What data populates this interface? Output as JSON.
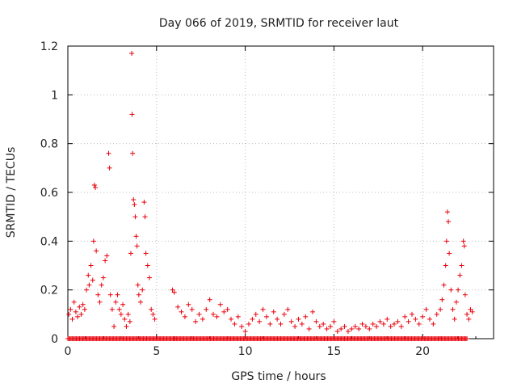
{
  "chart_data": {
    "type": "scatter",
    "title": "Day 066 of 2019, SRMTID for receiver laut",
    "xlabel": "GPS time / hours",
    "ylabel": "SRMTID / TECUs",
    "xlim": [
      0,
      24
    ],
    "ylim": [
      0,
      1.2
    ],
    "x_ticks": [
      0,
      5,
      10,
      15,
      20
    ],
    "x_tick_labels": [
      "0",
      "5",
      "10",
      "15",
      "20"
    ],
    "y_ticks": [
      0,
      0.2,
      0.4,
      0.6,
      0.8,
      1.0,
      1.2
    ],
    "y_tick_labels": [
      "0",
      "0.2",
      "0.4",
      "0.6",
      "0.8",
      "1",
      "1.2"
    ],
    "grid": true,
    "marker": "+",
    "color": "#e8000b",
    "series": [
      {
        "name": "SRMTID",
        "points": [
          [
            0.05,
            0.1
          ],
          [
            0.15,
            0.12
          ],
          [
            0.25,
            0.08
          ],
          [
            0.35,
            0.15
          ],
          [
            0.45,
            0.11
          ],
          [
            0.55,
            0.09
          ],
          [
            0.65,
            0.13
          ],
          [
            0.75,
            0.1
          ],
          [
            0.85,
            0.14
          ],
          [
            0.95,
            0.12
          ],
          [
            1.05,
            0.2
          ],
          [
            1.15,
            0.26
          ],
          [
            1.2,
            0.22
          ],
          [
            1.3,
            0.3
          ],
          [
            1.4,
            0.24
          ],
          [
            1.45,
            0.4
          ],
          [
            1.5,
            0.63
          ],
          [
            1.55,
            0.62
          ],
          [
            1.6,
            0.36
          ],
          [
            1.7,
            0.18
          ],
          [
            1.8,
            0.15
          ],
          [
            1.9,
            0.22
          ],
          [
            2.0,
            0.25
          ],
          [
            2.1,
            0.32
          ],
          [
            2.2,
            0.34
          ],
          [
            2.3,
            0.76
          ],
          [
            2.35,
            0.7
          ],
          [
            2.4,
            0.18
          ],
          [
            2.5,
            0.12
          ],
          [
            2.6,
            0.05
          ],
          [
            2.7,
            0.15
          ],
          [
            2.8,
            0.18
          ],
          [
            2.9,
            0.12
          ],
          [
            3.0,
            0.1
          ],
          [
            3.1,
            0.14
          ],
          [
            3.2,
            0.08
          ],
          [
            3.3,
            0.05
          ],
          [
            3.4,
            0.1
          ],
          [
            3.5,
            0.07
          ],
          [
            3.55,
            0.35
          ],
          [
            3.6,
            1.17
          ],
          [
            3.62,
            0.92
          ],
          [
            3.65,
            0.76
          ],
          [
            3.7,
            0.57
          ],
          [
            3.75,
            0.55
          ],
          [
            3.8,
            0.5
          ],
          [
            3.85,
            0.42
          ],
          [
            3.9,
            0.38
          ],
          [
            3.95,
            0.22
          ],
          [
            4.0,
            0.18
          ],
          [
            4.1,
            0.15
          ],
          [
            4.2,
            0.2
          ],
          [
            4.3,
            0.56
          ],
          [
            4.35,
            0.5
          ],
          [
            4.4,
            0.35
          ],
          [
            4.5,
            0.3
          ],
          [
            4.6,
            0.25
          ],
          [
            4.7,
            0.12
          ],
          [
            4.8,
            0.1
          ],
          [
            4.9,
            0.08
          ],
          [
            5.9,
            0.2
          ],
          [
            6.0,
            0.19
          ],
          [
            6.2,
            0.13
          ],
          [
            6.4,
            0.11
          ],
          [
            6.6,
            0.09
          ],
          [
            6.8,
            0.14
          ],
          [
            7.0,
            0.12
          ],
          [
            7.2,
            0.07
          ],
          [
            7.4,
            0.1
          ],
          [
            7.6,
            0.08
          ],
          [
            7.8,
            0.12
          ],
          [
            8.0,
            0.16
          ],
          [
            8.2,
            0.1
          ],
          [
            8.4,
            0.09
          ],
          [
            8.6,
            0.14
          ],
          [
            8.8,
            0.11
          ],
          [
            9.0,
            0.12
          ],
          [
            9.2,
            0.08
          ],
          [
            9.4,
            0.06
          ],
          [
            9.6,
            0.09
          ],
          [
            9.8,
            0.05
          ],
          [
            10.0,
            0.03
          ],
          [
            10.2,
            0.06
          ],
          [
            10.4,
            0.08
          ],
          [
            10.6,
            0.1
          ],
          [
            10.8,
            0.07
          ],
          [
            11.0,
            0.12
          ],
          [
            11.2,
            0.09
          ],
          [
            11.4,
            0.06
          ],
          [
            11.6,
            0.11
          ],
          [
            11.8,
            0.08
          ],
          [
            12.0,
            0.06
          ],
          [
            12.2,
            0.1
          ],
          [
            12.4,
            0.12
          ],
          [
            12.6,
            0.07
          ],
          [
            12.8,
            0.05
          ],
          [
            13.0,
            0.08
          ],
          [
            13.2,
            0.06
          ],
          [
            13.4,
            0.09
          ],
          [
            13.6,
            0.04
          ],
          [
            13.8,
            0.11
          ],
          [
            14.0,
            0.07
          ],
          [
            14.2,
            0.05
          ],
          [
            14.4,
            0.06
          ],
          [
            14.6,
            0.04
          ],
          [
            14.8,
            0.05
          ],
          [
            15.0,
            0.07
          ],
          [
            15.2,
            0.03
          ],
          [
            15.4,
            0.04
          ],
          [
            15.6,
            0.05
          ],
          [
            15.8,
            0.03
          ],
          [
            16.0,
            0.04
          ],
          [
            16.2,
            0.05
          ],
          [
            16.4,
            0.04
          ],
          [
            16.6,
            0.06
          ],
          [
            16.8,
            0.05
          ],
          [
            17.0,
            0.04
          ],
          [
            17.2,
            0.06
          ],
          [
            17.4,
            0.05
          ],
          [
            17.6,
            0.07
          ],
          [
            17.8,
            0.06
          ],
          [
            18.0,
            0.08
          ],
          [
            18.2,
            0.05
          ],
          [
            18.4,
            0.06
          ],
          [
            18.6,
            0.07
          ],
          [
            18.8,
            0.05
          ],
          [
            19.0,
            0.09
          ],
          [
            19.2,
            0.07
          ],
          [
            19.4,
            0.1
          ],
          [
            19.6,
            0.08
          ],
          [
            19.8,
            0.06
          ],
          [
            20.0,
            0.09
          ],
          [
            20.2,
            0.12
          ],
          [
            20.4,
            0.08
          ],
          [
            20.6,
            0.06
          ],
          [
            20.8,
            0.1
          ],
          [
            21.0,
            0.12
          ],
          [
            21.1,
            0.16
          ],
          [
            21.2,
            0.22
          ],
          [
            21.3,
            0.3
          ],
          [
            21.35,
            0.4
          ],
          [
            21.4,
            0.52
          ],
          [
            21.45,
            0.48
          ],
          [
            21.5,
            0.35
          ],
          [
            21.6,
            0.2
          ],
          [
            21.7,
            0.12
          ],
          [
            21.8,
            0.08
          ],
          [
            21.9,
            0.15
          ],
          [
            22.0,
            0.2
          ],
          [
            22.1,
            0.26
          ],
          [
            22.2,
            0.3
          ],
          [
            22.3,
            0.4
          ],
          [
            22.35,
            0.38
          ],
          [
            22.4,
            0.18
          ],
          [
            22.5,
            0.1
          ],
          [
            22.6,
            0.08
          ],
          [
            22.7,
            0.12
          ],
          [
            22.8,
            0.11
          ]
        ],
        "zero_line_ranges": [
          [
            0,
            6.0
          ],
          [
            6.0,
            22.5
          ]
        ]
      }
    ]
  }
}
